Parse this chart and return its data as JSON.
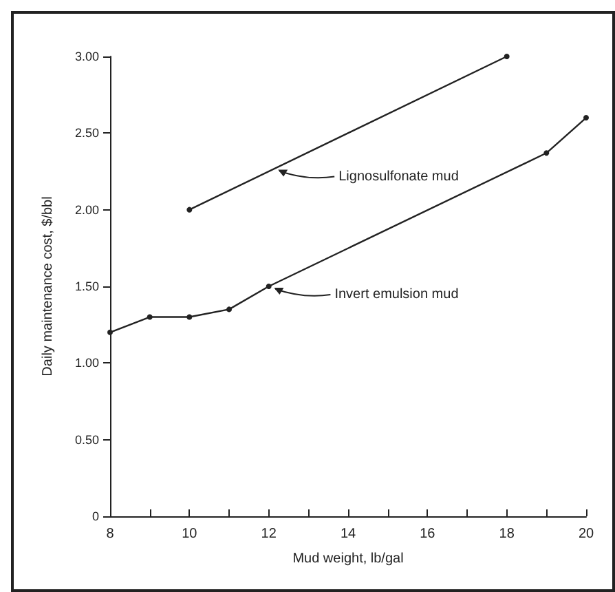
{
  "chart_data": {
    "type": "line",
    "xlabel": "Mud weight, lb/gal",
    "ylabel": "Daily maintenance cost, $/bbl",
    "xlim": [
      8,
      20
    ],
    "xticks": [
      8,
      10,
      12,
      14,
      16,
      18,
      20
    ],
    "ylim": [
      0,
      3
    ],
    "yticks": [
      {
        "value": 0,
        "label": "0"
      },
      {
        "value": 0.5,
        "label": "0.50"
      },
      {
        "value": 1,
        "label": "1.00"
      },
      {
        "value": 1.5,
        "label": "1.50"
      },
      {
        "value": 2,
        "label": "2.00"
      },
      {
        "value": 2.5,
        "label": "2.50"
      },
      {
        "value": 3,
        "label": "3.00"
      }
    ],
    "series": [
      {
        "color": "#222222",
        "x": [
          10,
          18
        ],
        "values": [
          2.0,
          3.0
        ]
      },
      {
        "color": "#222222",
        "x": [
          8,
          9,
          10,
          11,
          12,
          19,
          20
        ],
        "values": [
          1.2,
          1.3,
          1.3,
          1.35,
          1.5,
          2.37,
          2.6
        ]
      }
    ],
    "annotations": [
      {
        "text": "Lignosulfonate mud",
        "x": 12.2,
        "y": 2.27
      },
      {
        "text": "Invert emulsion mud",
        "x": 12.1,
        "y": 1.5
      }
    ],
    "marker": "circle",
    "line_style": "solid",
    "grid": false
  }
}
